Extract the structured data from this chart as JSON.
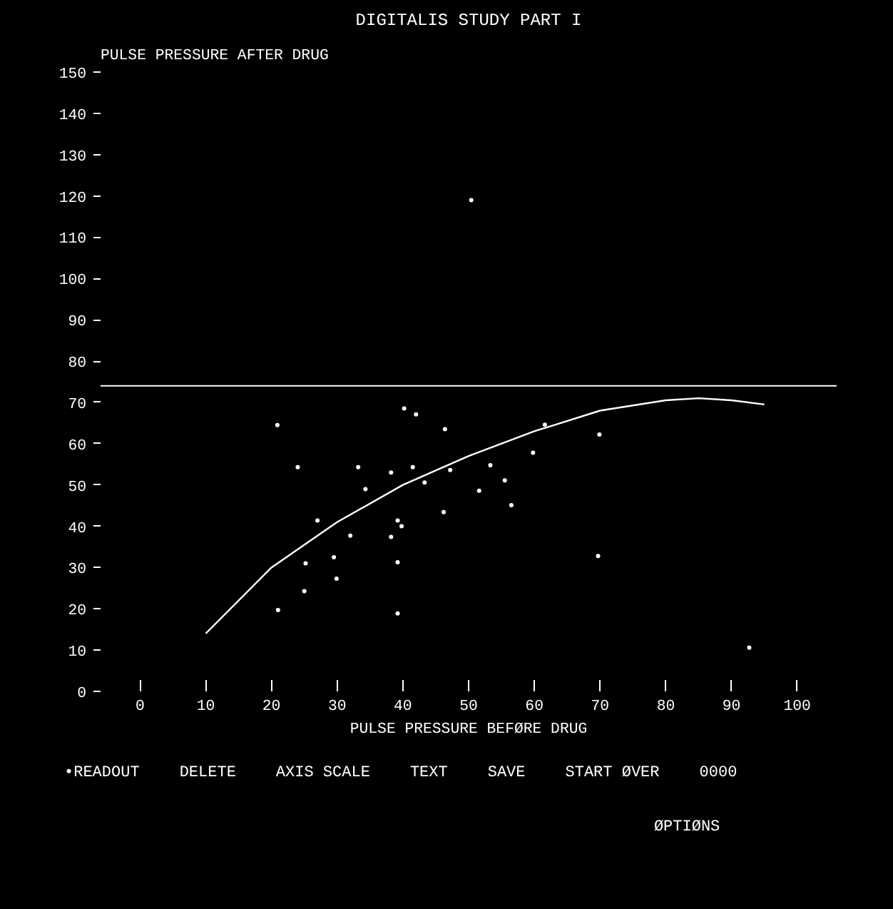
{
  "chart_data": {
    "type": "scatter",
    "title": "DIGITALIS STUDY PART I",
    "xlabel": "PULSE PRESSURE BEFØRE DRUG",
    "ylabel": "PULSE PRESSURE AFTER DRUG",
    "xlim": [
      -6,
      106
    ],
    "ylim": [
      0,
      150
    ],
    "xticks": [
      0,
      10,
      20,
      30,
      40,
      50,
      60,
      70,
      80,
      90,
      100
    ],
    "yticks": [
      0,
      10,
      20,
      30,
      40,
      50,
      60,
      70,
      80,
      90,
      100,
      110,
      120,
      130,
      140,
      150
    ],
    "grid": false,
    "series": [
      {
        "marker": "circle",
        "color": "#ffffff",
        "x": [
          20.9,
          24,
          25.2,
          25,
          21,
          27,
          29.5,
          29.9,
          32,
          33.2,
          34.3,
          38.2,
          38.2,
          39.2,
          39.8,
          39.2,
          39.2,
          40.2,
          42,
          41.5,
          43.3,
          46.2,
          46.4,
          47.2,
          51.6,
          53.3,
          55.5,
          56.5,
          59.8,
          61.6,
          69.9,
          69.7,
          92.7,
          50.4
        ],
        "values": [
          64.5,
          54.3,
          31,
          24.3,
          19.7,
          41.4,
          32.5,
          27.3,
          37.7,
          54.3,
          49,
          53,
          37.4,
          41.4,
          40,
          31.3,
          18.9,
          68.5,
          67.1,
          54.3,
          50.6,
          43.4,
          63.5,
          53.6,
          48.6,
          54.8,
          51.1,
          45.1,
          57.8,
          64.6,
          62.2,
          32.8,
          10.6,
          119
        ]
      },
      {
        "type": "line",
        "color": "#ffffff",
        "x": [
          10,
          20,
          30,
          40,
          50,
          60,
          70,
          80,
          85,
          90,
          95
        ],
        "values": [
          14,
          30,
          41,
          50,
          57,
          63,
          68,
          70.5,
          71,
          70.5,
          69.5
        ]
      }
    ],
    "ref_lines": [
      {
        "axis": "y",
        "value": 74,
        "color": "#ffffff"
      }
    ],
    "annotations": [
      "•READOUT",
      "DELETE",
      "AXIS SCALE",
      "TEXT",
      "SAVE",
      "START ØVER",
      "0000",
      "ØPTIØNS"
    ]
  }
}
